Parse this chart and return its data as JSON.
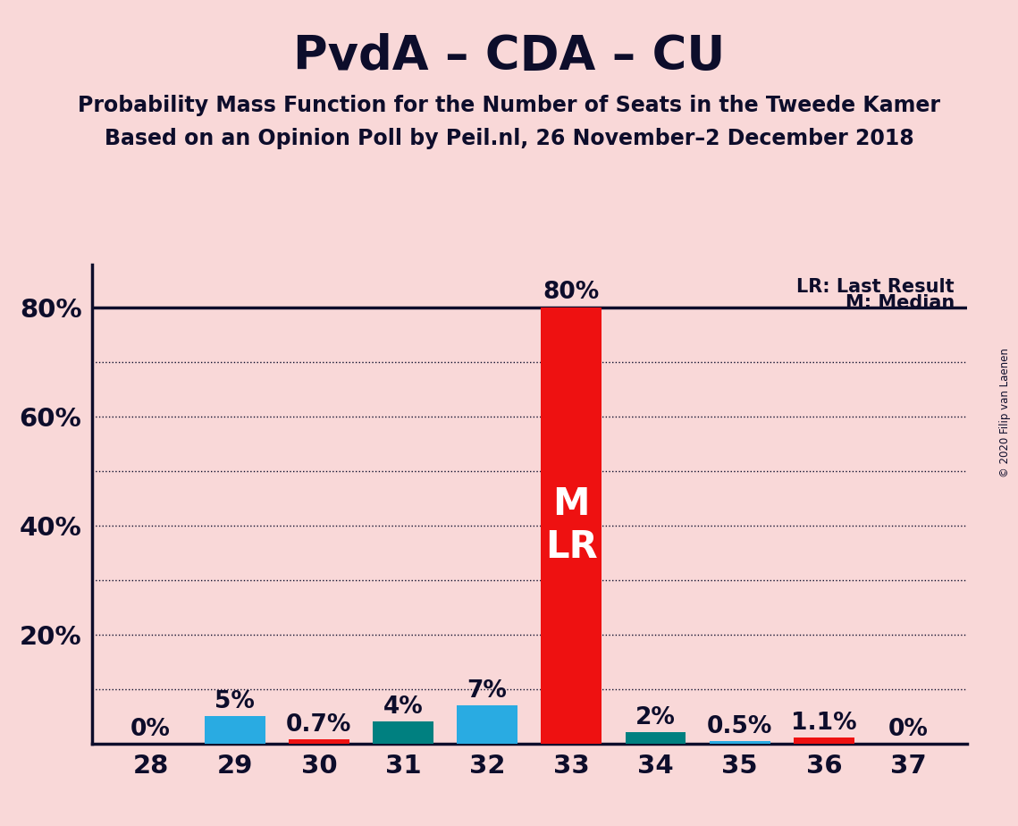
{
  "title": "PvdA – CDA – CU",
  "subtitle1": "Probability Mass Function for the Number of Seats in the Tweede Kamer",
  "subtitle2": "Based on an Opinion Poll by Peil.nl, 26 November–2 December 2018",
  "copyright": "© 2020 Filip van Laenen",
  "legend_lr": "LR: Last Result",
  "legend_m": "M: Median",
  "seats": [
    28,
    29,
    30,
    31,
    32,
    33,
    34,
    35,
    36,
    37
  ],
  "probabilities": [
    0.0,
    5.0,
    0.7,
    4.0,
    7.0,
    80.0,
    2.0,
    0.5,
    1.1,
    0.0
  ],
  "labels": [
    "0%",
    "5%",
    "0.7%",
    "4%",
    "7%",
    "80%",
    "2%",
    "0.5%",
    "1.1%",
    "0%"
  ],
  "bar_colors": [
    "#ee1111",
    "#29abe2",
    "#ee1111",
    "#008080",
    "#29abe2",
    "#ee1111",
    "#008080",
    "#29abe2",
    "#ee1111",
    "#ee1111"
  ],
  "median_seat": 33,
  "lr_seat": 33,
  "background_color": "#f9d8d8",
  "title_color": "#0d0d2b",
  "axis_color": "#0d0d2b",
  "grid_color": "#0d0d2b",
  "bar_label_color": "#0d0d2b",
  "big_bar_label_color": "#ffffff",
  "ylim_max": 88,
  "ytick_vals": [
    20,
    40,
    60,
    80
  ],
  "ytick_labels": [
    "20%",
    "40%",
    "60%",
    "80%"
  ],
  "dotted_lines": [
    10,
    20,
    30,
    40,
    50,
    60,
    70,
    80
  ],
  "solid_lines": [
    80
  ],
  "bar_width": 0.72
}
